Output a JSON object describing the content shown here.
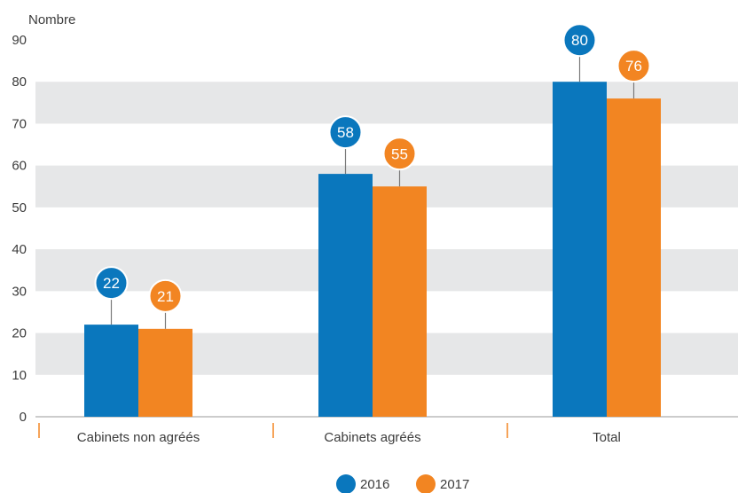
{
  "chart_data": {
    "type": "bar",
    "ylabel": "Nombre",
    "xlabel": "",
    "ylim": [
      0,
      90
    ],
    "yticks": [
      0,
      10,
      20,
      30,
      40,
      50,
      60,
      70,
      80,
      90
    ],
    "categories": [
      "Cabinets non agréés",
      "Cabinets agréés",
      "Total"
    ],
    "series": [
      {
        "name": "2016",
        "color": "#0a77bd",
        "values": [
          22,
          58,
          80
        ]
      },
      {
        "name": "2017",
        "color": "#f28522",
        "values": [
          21,
          55,
          76
        ]
      }
    ],
    "data_labels": true,
    "grid": "alternating horizontal bands",
    "legend": "bottom-center"
  }
}
